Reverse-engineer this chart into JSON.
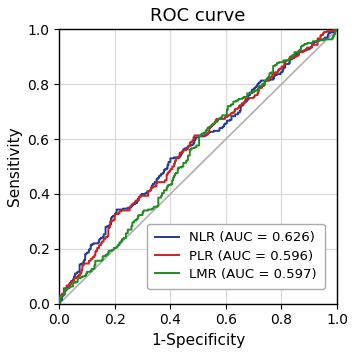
{
  "title": "ROC curve",
  "xlabel": "1-Specificity",
  "ylabel": "Sensitivity",
  "xlim": [
    0.0,
    1.0
  ],
  "ylim": [
    0.0,
    1.0
  ],
  "xticks": [
    0.0,
    0.2,
    0.4,
    0.6,
    0.8,
    1.0
  ],
  "yticks": [
    0.0,
    0.2,
    0.4,
    0.6,
    0.8,
    1.0
  ],
  "diagonal_color": "#b0b0b0",
  "curves": [
    {
      "label": "NLR (AUC = 0.626)",
      "color": "#1f3d99",
      "auc": 0.626,
      "seed": 17
    },
    {
      "label": "PLR (AUC = 0.596)",
      "color": "#cc2222",
      "auc": 0.596,
      "seed": 55
    },
    {
      "label": "LMR (AUC = 0.597)",
      "color": "#228B22",
      "auc": 0.597,
      "seed": 88
    }
  ],
  "grid_color": "#d8d8d8",
  "background_color": "#ffffff",
  "linewidth": 1.4,
  "title_fontsize": 13,
  "label_fontsize": 11,
  "tick_fontsize": 10,
  "legend_fontsize": 9.5
}
